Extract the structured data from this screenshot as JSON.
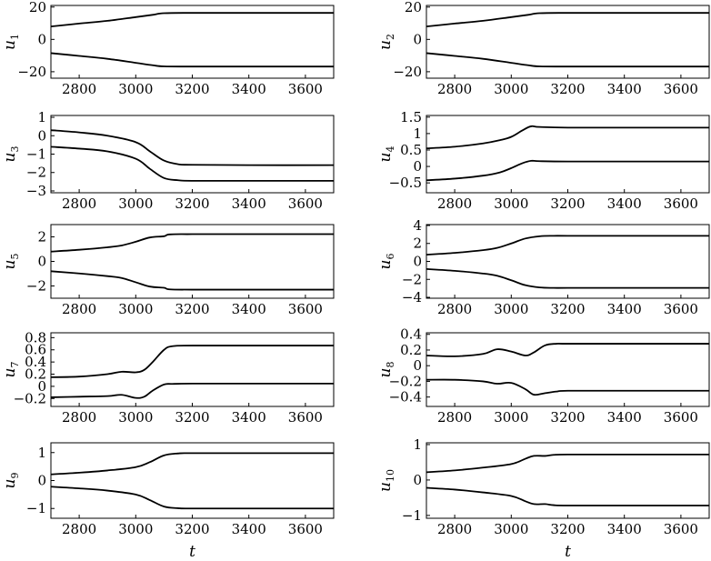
{
  "chart_data": [
    {
      "type": "line",
      "ylabel_var": "u",
      "ylabel_sub": "1",
      "xlabel": "",
      "xlim": [
        2700,
        3700
      ],
      "ylim": [
        -24,
        21
      ],
      "xticks": [
        2800,
        3000,
        3200,
        3400,
        3600
      ],
      "yticks": [
        -20,
        0,
        20
      ],
      "x": [
        2700,
        2800,
        2900,
        3000,
        3060,
        3100,
        3200,
        3400,
        3700
      ],
      "series": [
        {
          "values": [
            8,
            9.8,
            11.5,
            13.8,
            15.2,
            16.2,
            16.4,
            16.4,
            16.4
          ]
        },
        {
          "values": [
            -8.5,
            -10.2,
            -12,
            -14.5,
            -16.0,
            -16.7,
            -16.8,
            -16.8,
            -16.8
          ]
        }
      ]
    },
    {
      "type": "line",
      "ylabel_var": "u",
      "ylabel_sub": "2",
      "xlabel": "",
      "xlim": [
        2700,
        3700
      ],
      "ylim": [
        -24,
        21
      ],
      "xticks": [
        2800,
        3000,
        3200,
        3400,
        3600
      ],
      "yticks": [
        -20,
        0,
        20
      ],
      "x": [
        2700,
        2800,
        2900,
        3000,
        3060,
        3100,
        3200,
        3400,
        3700
      ],
      "series": [
        {
          "values": [
            8,
            9.8,
            11.5,
            13.8,
            15.2,
            16.2,
            16.4,
            16.4,
            16.4
          ]
        },
        {
          "values": [
            -8.5,
            -10.2,
            -12,
            -14.5,
            -16.0,
            -16.7,
            -16.8,
            -16.8,
            -16.8
          ]
        }
      ]
    },
    {
      "type": "line",
      "ylabel_var": "u",
      "ylabel_sub": "3",
      "xlabel": "",
      "xlim": [
        2700,
        3700
      ],
      "ylim": [
        -3.1,
        1.1
      ],
      "xticks": [
        2800,
        3000,
        3200,
        3400,
        3600
      ],
      "yticks": [
        -3,
        -2,
        -1,
        0,
        1
      ],
      "x": [
        2700,
        2800,
        2900,
        3000,
        3050,
        3100,
        3150,
        3200,
        3400,
        3700
      ],
      "series": [
        {
          "values": [
            0.3,
            0.18,
            0.0,
            -0.35,
            -0.85,
            -1.35,
            -1.55,
            -1.58,
            -1.6,
            -1.6
          ]
        },
        {
          "values": [
            -0.6,
            -0.7,
            -0.85,
            -1.25,
            -1.8,
            -2.3,
            -2.42,
            -2.45,
            -2.45,
            -2.45
          ]
        }
      ]
    },
    {
      "type": "line",
      "ylabel_var": "u",
      "ylabel_sub": "4",
      "xlabel": "",
      "xlim": [
        2700,
        3700
      ],
      "ylim": [
        -0.8,
        1.55
      ],
      "xticks": [
        2800,
        3000,
        3200,
        3400,
        3600
      ],
      "yticks": [
        -0.5,
        0,
        0.5,
        1,
        1.5
      ],
      "x": [
        2700,
        2800,
        2900,
        2960,
        3000,
        3040,
        3070,
        3100,
        3200,
        3400,
        3700
      ],
      "series": [
        {
          "values": [
            0.55,
            0.6,
            0.7,
            0.8,
            0.9,
            1.1,
            1.22,
            1.2,
            1.18,
            1.18,
            1.18
          ]
        },
        {
          "values": [
            -0.42,
            -0.37,
            -0.28,
            -0.18,
            -0.05,
            0.1,
            0.17,
            0.16,
            0.15,
            0.15,
            0.15
          ]
        }
      ]
    },
    {
      "type": "line",
      "ylabel_var": "u",
      "ylabel_sub": "5",
      "xlabel": "",
      "xlim": [
        2700,
        3700
      ],
      "ylim": [
        -3,
        3
      ],
      "xticks": [
        2800,
        3000,
        3200,
        3400,
        3600
      ],
      "yticks": [
        -2,
        0,
        2
      ],
      "x": [
        2700,
        2800,
        2900,
        2950,
        3000,
        3050,
        3100,
        3120,
        3200,
        3400,
        3700
      ],
      "series": [
        {
          "values": [
            0.8,
            0.95,
            1.15,
            1.3,
            1.6,
            1.95,
            2.05,
            2.2,
            2.22,
            2.22,
            2.22
          ]
        },
        {
          "values": [
            -0.8,
            -0.98,
            -1.2,
            -1.35,
            -1.7,
            -2.05,
            -2.15,
            -2.28,
            -2.3,
            -2.3,
            -2.3
          ]
        }
      ]
    },
    {
      "type": "line",
      "ylabel_var": "u",
      "ylabel_sub": "6",
      "xlabel": "",
      "xlim": [
        2700,
        3700
      ],
      "ylim": [
        -4.1,
        4.1
      ],
      "xticks": [
        2800,
        3000,
        3200,
        3400,
        3600
      ],
      "yticks": [
        -4,
        -2,
        0,
        2,
        4
      ],
      "x": [
        2700,
        2800,
        2900,
        2950,
        3000,
        3050,
        3100,
        3150,
        3200,
        3400,
        3700
      ],
      "series": [
        {
          "values": [
            0.75,
            0.95,
            1.25,
            1.5,
            2.0,
            2.55,
            2.8,
            2.85,
            2.85,
            2.85,
            2.85
          ]
        },
        {
          "values": [
            -0.85,
            -1.05,
            -1.35,
            -1.6,
            -2.1,
            -2.65,
            -2.9,
            -2.95,
            -2.95,
            -2.95,
            -2.95
          ]
        }
      ]
    },
    {
      "type": "line",
      "ylabel_var": "u",
      "ylabel_sub": "7",
      "xlabel": "",
      "xlim": [
        2700,
        3700
      ],
      "ylim": [
        -0.33,
        0.88
      ],
      "xticks": [
        2800,
        3000,
        3200,
        3400,
        3600
      ],
      "yticks": [
        -0.2,
        0,
        0.2,
        0.4,
        0.6,
        0.8
      ],
      "x": [
        2700,
        2800,
        2900,
        2950,
        3000,
        3030,
        3060,
        3100,
        3130,
        3200,
        3400,
        3700
      ],
      "series": [
        {
          "values": [
            0.15,
            0.16,
            0.2,
            0.24,
            0.23,
            0.27,
            0.4,
            0.6,
            0.66,
            0.67,
            0.67,
            0.67
          ]
        },
        {
          "values": [
            -0.18,
            -0.17,
            -0.16,
            -0.14,
            -0.19,
            -0.17,
            -0.07,
            0.03,
            0.04,
            0.045,
            0.045,
            0.045
          ]
        }
      ]
    },
    {
      "type": "line",
      "ylabel_var": "u",
      "ylabel_sub": "8",
      "xlabel": "",
      "xlim": [
        2700,
        3700
      ],
      "ylim": [
        -0.52,
        0.42
      ],
      "xticks": [
        2800,
        3000,
        3200,
        3400,
        3600
      ],
      "yticks": [
        -0.4,
        -0.2,
        0,
        0.2,
        0.4
      ],
      "x": [
        2700,
        2800,
        2900,
        2950,
        3000,
        3050,
        3080,
        3120,
        3160,
        3200,
        3400,
        3700
      ],
      "series": [
        {
          "values": [
            0.13,
            0.12,
            0.15,
            0.21,
            0.18,
            0.13,
            0.17,
            0.26,
            0.28,
            0.28,
            0.28,
            0.28
          ]
        },
        {
          "values": [
            -0.18,
            -0.18,
            -0.2,
            -0.23,
            -0.22,
            -0.3,
            -0.37,
            -0.35,
            -0.33,
            -0.32,
            -0.32,
            -0.32
          ]
        }
      ]
    },
    {
      "type": "line",
      "ylabel_var": "u",
      "ylabel_sub": "9",
      "xlabel": "",
      "xlim": [
        2700,
        3700
      ],
      "ylim": [
        -1.35,
        1.35
      ],
      "xticks": [
        2800,
        3000,
        3200,
        3400,
        3600
      ],
      "yticks": [
        -1,
        0,
        1
      ],
      "x": [
        2700,
        2800,
        2900,
        3000,
        3050,
        3100,
        3150,
        3200,
        3400,
        3700
      ],
      "series": [
        {
          "values": [
            0.22,
            0.28,
            0.36,
            0.48,
            0.66,
            0.9,
            0.97,
            0.98,
            0.98,
            0.98
          ]
        },
        {
          "values": [
            -0.22,
            -0.28,
            -0.36,
            -0.5,
            -0.7,
            -0.93,
            -0.99,
            -1.0,
            -1.0,
            -1.0
          ]
        }
      ]
    },
    {
      "type": "line",
      "ylabel_var": "u",
      "ylabel_sub": "10",
      "xlabel": "",
      "xlim": [
        2700,
        3700
      ],
      "ylim": [
        -1.08,
        1.05
      ],
      "xticks": [
        2800,
        3000,
        3200,
        3400,
        3600
      ],
      "yticks": [
        -1,
        0,
        1
      ],
      "x": [
        2700,
        2800,
        2900,
        3000,
        3050,
        3080,
        3120,
        3150,
        3200,
        3400,
        3700
      ],
      "series": [
        {
          "values": [
            0.22,
            0.27,
            0.35,
            0.45,
            0.6,
            0.68,
            0.68,
            0.71,
            0.72,
            0.72,
            0.72
          ]
        },
        {
          "values": [
            -0.22,
            -0.27,
            -0.35,
            -0.45,
            -0.6,
            -0.68,
            -0.68,
            -0.71,
            -0.72,
            -0.72,
            -0.72
          ]
        }
      ]
    }
  ],
  "xlabel_bottom": "t"
}
